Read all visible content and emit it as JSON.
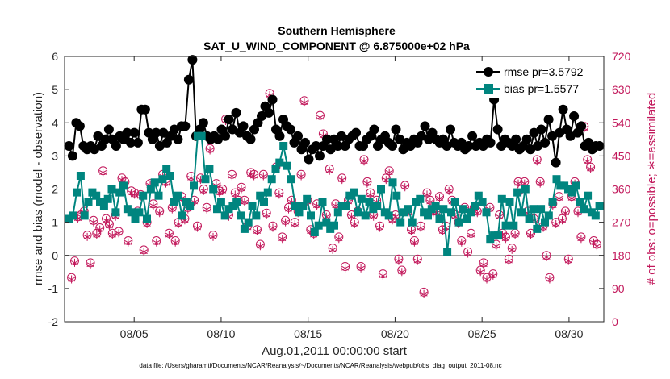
{
  "chart_data": {
    "type": "line",
    "title": "Southern Hemisphere",
    "subtitle": "SAT_U_WIND_COMPONENT @ 6.875000e+02 hPa",
    "xlabel": "Aug.01,2011 00:00:00 start",
    "ylabel": "rmse and bias (model - observation)",
    "y2label": "# of obs: o=possible; ∗=assimilated",
    "footnote": "data file: /Users/gharamti/Documents/NCAR/Reanalysis/~/Documents/NCAR/Reanalysis/webpub/obs_diag_output_2011-08.nc",
    "xlim": [
      1,
      32
    ],
    "ylim": [
      -2,
      6
    ],
    "y2lim": [
      0,
      720
    ],
    "x_tick_values": [
      5,
      10,
      15,
      20,
      25,
      30
    ],
    "x_tick_labels": [
      "08/05",
      "08/10",
      "08/15",
      "08/20",
      "08/25",
      "08/30"
    ],
    "y_ticks": [
      "-2",
      "-1",
      "0",
      "1",
      "2",
      "3",
      "4",
      "5",
      "6"
    ],
    "y2_ticks": [
      "0",
      "90",
      "180",
      "270",
      "360",
      "450",
      "540",
      "630",
      "720"
    ],
    "colors": {
      "rmse": "#000000",
      "bias": "#00857f",
      "obs": "#c2185b",
      "zero_line": "#a6a6a6"
    },
    "legend_position": "top-right",
    "series": [
      {
        "name": "rmse pr=3.5792",
        "values": [
          3.3,
          3.0,
          4.0,
          3.9,
          3.3,
          3.2,
          3.3,
          3.2,
          3.6,
          3.3,
          3.5,
          3.8,
          3.5,
          3.3,
          3.6,
          3.5,
          3.7,
          3.4,
          3.7,
          3.4,
          4.4,
          4.4,
          3.7,
          3.5,
          3.7,
          3.3,
          3.7,
          3.4,
          3.6,
          3.8,
          3.5,
          3.9,
          3.9,
          5.3,
          5.9,
          3.6,
          3.8,
          4.0,
          3.6,
          3.5,
          3.6,
          3.5,
          3.8,
          3.6,
          4.1,
          3.8,
          4.3,
          3.7,
          3.9,
          3.6,
          3.5,
          3.8,
          4.0,
          4.2,
          4.5,
          4.3,
          4.7,
          3.8,
          3.6,
          4.1,
          3.9,
          3.8,
          3.4,
          3.6,
          3.2,
          3.4,
          2.9,
          3.2,
          3.3,
          3.0,
          3.3,
          3.5,
          3.2,
          3.5,
          3.3,
          3.6,
          3.3,
          3.5,
          3.6,
          3.7,
          3.3,
          3.3,
          3.5,
          3.6,
          3.8,
          3.3,
          3.5,
          3.6,
          3.4,
          3.3,
          3.8,
          3.5,
          3.2,
          3.4,
          3.3,
          3.5,
          3.4,
          3.6,
          3.9,
          3.5,
          3.7,
          3.5,
          3.4,
          3.5,
          3.3,
          3.8,
          3.4,
          3.3,
          3.4,
          3.2,
          3.3,
          3.6,
          3.3,
          3.4,
          3.3,
          3.5,
          3.4,
          4.7,
          3.8,
          3.3,
          3.5,
          3.4,
          3.3,
          3.5,
          3.2,
          3.3,
          3.5,
          3.2,
          3.7,
          3.3,
          3.8,
          3.4,
          4.1,
          3.6,
          2.8,
          3.7,
          4.4,
          3.8,
          3.6,
          4.2,
          3.7,
          3.9,
          3.3,
          3.4,
          3.2,
          3.3,
          3.3
        ]
      },
      {
        "name": "bias pr=1.5577",
        "values": [
          1.1,
          1.2,
          1.9,
          2.4,
          1.2,
          1.6,
          1.9,
          1.8,
          1.6,
          1.5,
          1.7,
          2.0,
          1.3,
          1.9,
          2.1,
          1.4,
          1.3,
          1.1,
          1.3,
          1.8,
          1.1,
          2.0,
          2.2,
          1.8,
          2.3,
          2.6,
          2.4,
          1.6,
          1.8,
          1.2,
          1.6,
          1.5,
          2.1,
          3.6,
          3.6,
          2.3,
          2.6,
          2.0,
          1.4,
          1.6,
          1.2,
          1.4,
          1.5,
          1.6,
          1.2,
          0.8,
          1.0,
          1.5,
          1.2,
          1.8,
          1.6,
          1.9,
          2.3,
          2.6,
          2.8,
          3.3,
          2.7,
          2.3,
          1.5,
          1.3,
          1.5,
          1.7,
          1.2,
          0.7,
          0.9,
          1.6,
          1.0,
          0.8,
          0.9,
          1.3,
          1.5,
          1.5,
          1.8,
          1.9,
          1.3,
          1.7,
          1.2,
          1.6,
          1.4,
          1.5,
          2.0,
          1.3,
          1.2,
          2.2,
          1.8,
          1.0,
          1.3,
          1.4,
          1.0,
          1.6,
          1.7,
          1.3,
          1.2,
          1.4,
          1.5,
          1.1,
          1.4,
          0.1,
          1.3,
          1.6,
          1.0,
          1.4,
          1.1,
          1.3,
          1.5,
          1.8,
          1.6,
          1.3,
          0.5,
          0.6,
          0.6,
          1.7,
          0.9,
          1.6,
          0.9,
          1.9,
          1.3,
          2.0,
          1.1,
          1.4,
          0.8,
          1.4,
          1.0,
          1.2,
          1.6,
          2.3,
          2.1,
          2.1,
          2.0,
          1.9,
          2.1,
          1.6,
          1.4,
          1.8,
          1.3,
          1.2,
          1.5
        ]
      }
    ],
    "obs_possible": [
      120,
      165,
      285,
      290,
      300,
      235,
      160,
      275,
      240,
      255,
      410,
      280,
      265,
      240,
      290,
      245,
      390,
      380,
      220,
      355,
      350,
      300,
      345,
      195,
      270,
      375,
      320,
      220,
      300,
      400,
      380,
      240,
      310,
      220,
      270,
      340,
      280,
      310,
      395,
      330,
      260,
      390,
      360,
      310,
      470,
      235,
      375,
      355,
      360,
      550,
      290,
      400,
      350,
      330,
      365,
      330,
      260,
      405,
      400,
      250,
      210,
      400,
      295,
      620,
      260,
      420,
      350,
      230,
      275,
      310,
      330,
      270,
      300,
      400,
      600,
      330,
      250,
      240,
      320,
      560,
      510,
      290,
      415,
      200,
      320,
      230,
      390,
      150,
      330,
      290,
      270,
      300,
      150,
      440,
      380,
      350,
      290,
      330,
      260,
      130,
      390,
      410,
      280,
      290,
      170,
      140,
      370,
      300,
      250,
      220,
      170,
      260,
      80,
      350,
      330,
      300,
      300,
      340,
      250,
      260,
      360,
      330,
      290,
      270,
      220,
      310,
      190,
      240,
      310,
      300,
      140,
      160,
      120,
      310,
      130,
      210,
      290,
      240,
      230,
      170,
      200,
      240,
      380,
      360,
      380,
      300,
      240,
      280,
      440,
      380,
      260,
      180,
      120,
      320,
      270,
      340,
      280,
      300,
      170,
      340,
      380,
      300,
      230,
      530,
      440,
      420,
      220,
      210
    ],
    "obs_assimilated": [
      115,
      160,
      280,
      285,
      295,
      230,
      155,
      270,
      235,
      250,
      405,
      275,
      260,
      235,
      285,
      240,
      385,
      375,
      215,
      350,
      345,
      295,
      340,
      190,
      265,
      370,
      315,
      215,
      295,
      395,
      375,
      235,
      305,
      215,
      265,
      335,
      275,
      305,
      390,
      325,
      255,
      385,
      355,
      305,
      465,
      230,
      370,
      350,
      355,
      545,
      285,
      395,
      345,
      325,
      360,
      325,
      255,
      400,
      395,
      245,
      205,
      395,
      290,
      615,
      255,
      415,
      345,
      225,
      270,
      305,
      325,
      265,
      295,
      395,
      595,
      325,
      245,
      235,
      315,
      555,
      505,
      285,
      410,
      195,
      315,
      225,
      385,
      145,
      325,
      285,
      265,
      295,
      145,
      435,
      375,
      345,
      285,
      325,
      255,
      125,
      385,
      405,
      275,
      285,
      165,
      135,
      365,
      295,
      245,
      215,
      165,
      255,
      75,
      345,
      325,
      295,
      295,
      335,
      245,
      255,
      355,
      325,
      285,
      265,
      215,
      305,
      185,
      235,
      305,
      295,
      135,
      155,
      115,
      305,
      125,
      205,
      285,
      235,
      225,
      165,
      195,
      235,
      375,
      355,
      375,
      295,
      235,
      275,
      435,
      375,
      255,
      175,
      115,
      315,
      265,
      335,
      275,
      295,
      165,
      335,
      375,
      295,
      225,
      525,
      435,
      415,
      215,
      205
    ]
  }
}
